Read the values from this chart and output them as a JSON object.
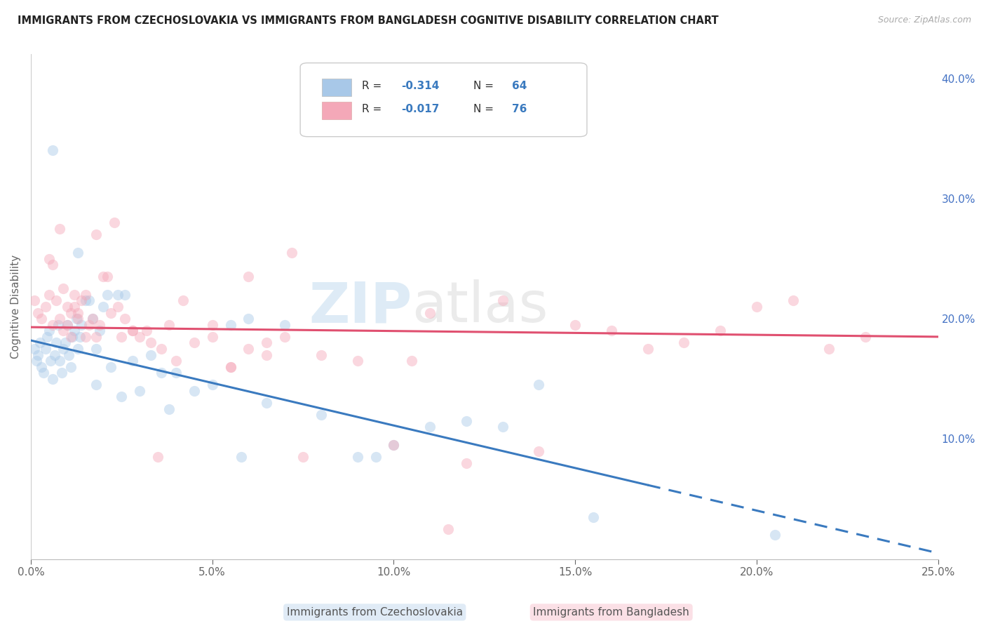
{
  "title": "IMMIGRANTS FROM CZECHOSLOVAKIA VS IMMIGRANTS FROM BANGLADESH COGNITIVE DISABILITY CORRELATION CHART",
  "source": "Source: ZipAtlas.com",
  "ylabel": "Cognitive Disability",
  "xmin": 0.0,
  "xmax": 25.0,
  "ymin": 0.0,
  "ymax": 42.0,
  "blue_color": "#a8c8e8",
  "pink_color": "#f4a8b8",
  "blue_line_color": "#3a7abf",
  "pink_line_color": "#e05070",
  "watermark_zip": "ZIP",
  "watermark_atlas": "atlas",
  "grid_color": "#cccccc",
  "title_color": "#222222",
  "source_color": "#aaaaaa",
  "right_tick_color": "#4472c4",
  "blue_scatter_x": [
    0.1,
    0.15,
    0.2,
    0.25,
    0.3,
    0.35,
    0.4,
    0.45,
    0.5,
    0.55,
    0.6,
    0.65,
    0.7,
    0.75,
    0.8,
    0.85,
    0.9,
    0.95,
    1.0,
    1.05,
    1.1,
    1.15,
    1.2,
    1.25,
    1.3,
    1.35,
    1.4,
    1.5,
    1.6,
    1.7,
    1.8,
    1.9,
    2.0,
    2.1,
    2.2,
    2.4,
    2.6,
    2.8,
    3.0,
    3.3,
    3.6,
    4.0,
    4.5,
    5.0,
    5.5,
    6.0,
    6.5,
    7.0,
    8.0,
    9.0,
    10.0,
    11.0,
    12.0,
    13.0,
    14.0,
    15.5,
    1.3,
    1.8,
    2.5,
    3.8,
    5.8,
    9.5,
    20.5,
    0.6
  ],
  "blue_scatter_y": [
    17.5,
    16.5,
    17.0,
    18.0,
    16.0,
    15.5,
    17.5,
    18.5,
    19.0,
    16.5,
    15.0,
    17.0,
    18.0,
    19.5,
    16.5,
    15.5,
    17.5,
    18.0,
    19.5,
    17.0,
    16.0,
    18.5,
    19.0,
    20.0,
    17.5,
    18.5,
    19.5,
    21.5,
    21.5,
    20.0,
    17.5,
    19.0,
    21.0,
    22.0,
    16.0,
    22.0,
    22.0,
    16.5,
    14.0,
    17.0,
    15.5,
    15.5,
    14.0,
    14.5,
    19.5,
    20.0,
    13.0,
    19.5,
    12.0,
    8.5,
    9.5,
    11.0,
    11.5,
    11.0,
    14.5,
    3.5,
    25.5,
    14.5,
    13.5,
    12.5,
    8.5,
    8.5,
    2.0,
    34.0
  ],
  "pink_scatter_x": [
    0.1,
    0.2,
    0.3,
    0.4,
    0.5,
    0.6,
    0.7,
    0.8,
    0.9,
    1.0,
    1.1,
    1.2,
    1.3,
    1.4,
    1.5,
    1.6,
    1.7,
    1.8,
    1.9,
    2.0,
    2.2,
    2.4,
    2.6,
    2.8,
    3.0,
    3.3,
    3.6,
    4.0,
    4.5,
    5.0,
    5.5,
    6.0,
    6.5,
    7.0,
    7.5,
    8.0,
    9.0,
    10.0,
    11.0,
    12.0,
    13.0,
    14.0,
    15.0,
    16.0,
    17.0,
    18.0,
    19.0,
    20.0,
    21.0,
    22.0,
    23.0,
    1.5,
    2.5,
    3.5,
    5.0,
    7.2,
    10.5,
    3.8,
    4.2,
    3.2,
    2.8,
    0.9,
    1.0,
    1.1,
    1.2,
    1.3,
    6.0,
    5.5,
    6.5,
    0.5,
    0.8,
    0.6,
    1.8,
    2.3,
    2.1,
    11.5
  ],
  "pink_scatter_y": [
    21.5,
    20.5,
    20.0,
    21.0,
    22.0,
    19.5,
    21.5,
    20.0,
    19.0,
    21.0,
    20.5,
    22.0,
    20.5,
    21.5,
    18.5,
    19.5,
    20.0,
    18.5,
    19.5,
    23.5,
    20.5,
    21.0,
    20.0,
    19.0,
    18.5,
    18.0,
    17.5,
    16.5,
    18.0,
    18.5,
    16.0,
    17.5,
    17.0,
    18.5,
    8.5,
    17.0,
    16.5,
    9.5,
    20.5,
    8.0,
    21.5,
    9.0,
    19.5,
    19.0,
    17.5,
    18.0,
    19.0,
    21.0,
    21.5,
    17.5,
    18.5,
    22.0,
    18.5,
    8.5,
    19.5,
    25.5,
    16.5,
    19.5,
    21.5,
    19.0,
    19.0,
    22.5,
    19.5,
    18.5,
    21.0,
    20.0,
    23.5,
    16.0,
    18.0,
    25.0,
    27.5,
    24.5,
    27.0,
    28.0,
    23.5,
    2.5
  ],
  "blue_trend_start_x": 0.0,
  "blue_trend_start_y": 18.2,
  "blue_trend_end_x": 25.0,
  "blue_trend_end_y": 0.5,
  "blue_solid_end_x": 17.0,
  "pink_trend_start_x": 0.0,
  "pink_trend_start_y": 19.3,
  "pink_trend_end_x": 25.0,
  "pink_trend_end_y": 18.5,
  "scatter_size": 120,
  "scatter_alpha": 0.45,
  "background_color": "#ffffff"
}
